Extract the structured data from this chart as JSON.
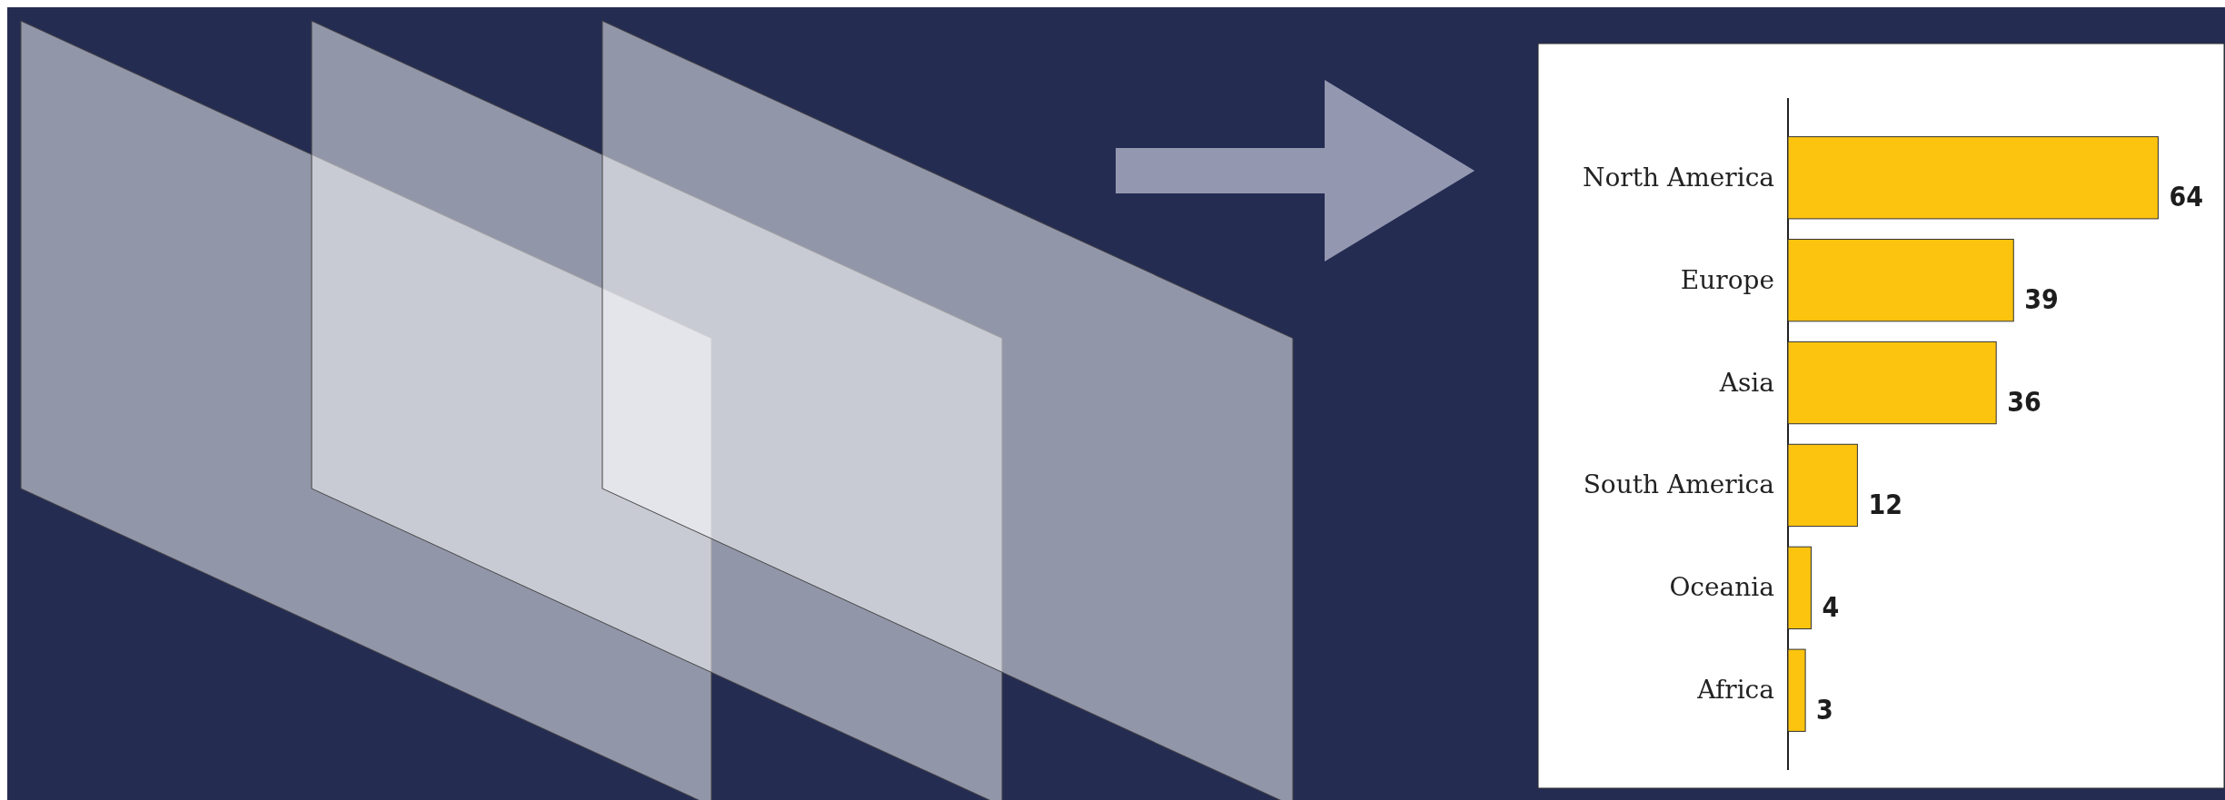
{
  "chart_data": {
    "type": "bar",
    "orientation": "horizontal",
    "categories": [
      "North America",
      "Europe",
      "Asia",
      "South America",
      "Oceania",
      "Africa"
    ],
    "values": [
      64,
      39,
      36,
      12,
      4,
      3
    ],
    "color": "#fcc40f",
    "data_labels": true
  }
}
